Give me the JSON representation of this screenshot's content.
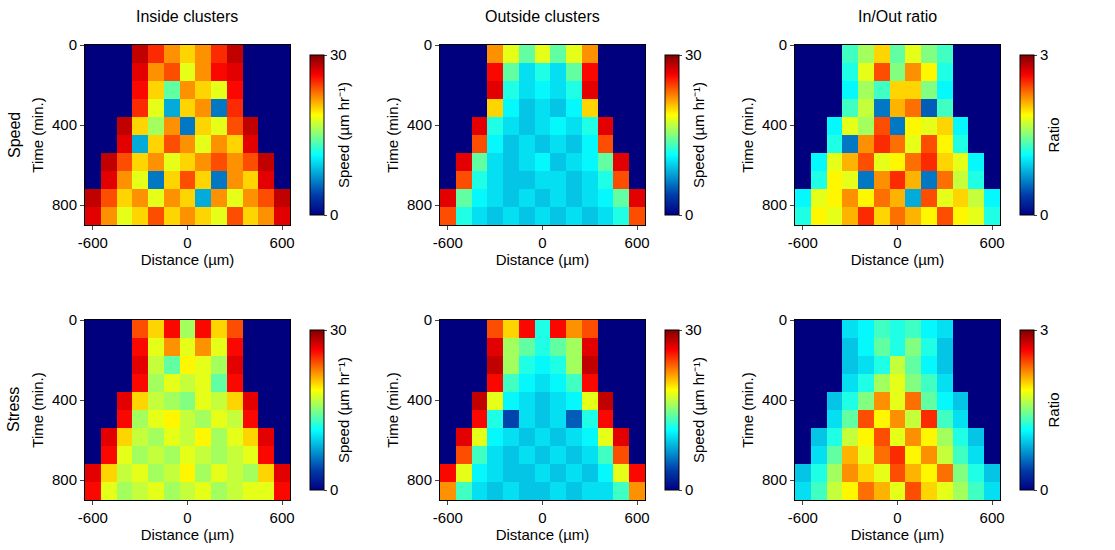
{
  "chart_data": [
    {
      "type": "heatmap",
      "title": "Inside clusters",
      "annotations": [
        "Speed"
      ],
      "xlabel": "Distance (µm)",
      "ylabel": "Time (min.)",
      "color": "Jet",
      "x": [
        -600,
        -500,
        -400,
        -300,
        -200,
        -100,
        0,
        100,
        200,
        300,
        400,
        500,
        600
      ],
      "y": [
        45,
        135,
        225,
        315,
        405,
        495,
        585,
        675,
        765,
        855
      ],
      "xlim": [
        -650,
        650
      ],
      "ylim": [
        900,
        0
      ],
      "xticks": [
        -600,
        0,
        600
      ],
      "yticks": [
        0,
        400,
        800
      ],
      "colorbar": {
        "title": "Speed (µm hr⁻¹)",
        "range": [
          0,
          30
        ],
        "ticks": [
          0,
          30
        ]
      },
      "z": [
        [
          null,
          null,
          null,
          28,
          25,
          22,
          20,
          22,
          25,
          28,
          null,
          null,
          null
        ],
        [
          null,
          null,
          null,
          27,
          22,
          24,
          18,
          22,
          26,
          27,
          null,
          null,
          null
        ],
        [
          null,
          null,
          null,
          26,
          20,
          14,
          22,
          20,
          18,
          26,
          null,
          null,
          null
        ],
        [
          null,
          null,
          null,
          25,
          18,
          8,
          20,
          22,
          6,
          25,
          null,
          null,
          null
        ],
        [
          null,
          null,
          28,
          20,
          16,
          22,
          6,
          20,
          18,
          24,
          28,
          null,
          null
        ],
        [
          null,
          null,
          27,
          8,
          20,
          24,
          22,
          18,
          22,
          20,
          27,
          null,
          null
        ],
        [
          null,
          28,
          24,
          20,
          22,
          18,
          20,
          22,
          24,
          22,
          24,
          28,
          null
        ],
        [
          null,
          27,
          22,
          18,
          6,
          20,
          24,
          20,
          6,
          22,
          20,
          27,
          null
        ],
        [
          28,
          24,
          20,
          22,
          18,
          22,
          20,
          8,
          22,
          18,
          22,
          24,
          28
        ],
        [
          27,
          22,
          18,
          20,
          24,
          20,
          22,
          20,
          18,
          24,
          20,
          22,
          27
        ]
      ]
    },
    {
      "type": "heatmap",
      "title": "Outside clusters",
      "xlabel": "Distance (µm)",
      "ylabel": "Time (min.)",
      "color": "Jet",
      "x": [
        -600,
        -500,
        -400,
        -300,
        -200,
        -100,
        0,
        100,
        200,
        300,
        400,
        500,
        600
      ],
      "y": [
        45,
        135,
        225,
        315,
        405,
        495,
        585,
        675,
        765,
        855
      ],
      "xlim": [
        -650,
        650
      ],
      "ylim": [
        900,
        0
      ],
      "xticks": [
        -600,
        0,
        600
      ],
      "yticks": [
        0,
        400,
        800
      ],
      "colorbar": {
        "title": "Speed (µm hr⁻¹)",
        "range": [
          0,
          30
        ],
        "ticks": [
          0,
          30
        ]
      },
      "z": [
        [
          null,
          null,
          null,
          22,
          18,
          14,
          18,
          14,
          18,
          22,
          null,
          null,
          null
        ],
        [
          null,
          null,
          null,
          26,
          14,
          10,
          12,
          10,
          14,
          26,
          null,
          null,
          null
        ],
        [
          null,
          null,
          null,
          27,
          12,
          10,
          11,
          10,
          12,
          27,
          null,
          null,
          null
        ],
        [
          null,
          null,
          null,
          20,
          11,
          9,
          10,
          9,
          11,
          20,
          null,
          null,
          null
        ],
        [
          null,
          null,
          27,
          12,
          10,
          9,
          10,
          11,
          10,
          12,
          27,
          null,
          null
        ],
        [
          null,
          null,
          24,
          11,
          9,
          10,
          9,
          10,
          9,
          11,
          24,
          null,
          null
        ],
        [
          null,
          27,
          14,
          10,
          9,
          10,
          11,
          9,
          10,
          11,
          14,
          27,
          null
        ],
        [
          null,
          24,
          12,
          10,
          9,
          9,
          10,
          10,
          9,
          10,
          12,
          24,
          null
        ],
        [
          27,
          14,
          11,
          10,
          9,
          10,
          9,
          10,
          9,
          10,
          11,
          14,
          27
        ],
        [
          24,
          12,
          10,
          9,
          10,
          9,
          10,
          9,
          10,
          9,
          10,
          12,
          24
        ]
      ]
    },
    {
      "type": "heatmap",
      "title": "In/Out ratio",
      "xlabel": "Distance (µm)",
      "ylabel": "Time (min.)",
      "color": "Jet",
      "x": [
        -600,
        -500,
        -400,
        -300,
        -200,
        -100,
        0,
        100,
        200,
        300,
        400,
        500,
        600
      ],
      "y": [
        45,
        135,
        225,
        315,
        405,
        495,
        585,
        675,
        765,
        855
      ],
      "xlim": [
        -650,
        650
      ],
      "ylim": [
        900,
        0
      ],
      "xticks": [
        -600,
        0,
        600
      ],
      "yticks": [
        0,
        400,
        800
      ],
      "colorbar": {
        "title": "Ratio",
        "range": [
          0,
          3
        ],
        "ticks": [
          0,
          3
        ]
      },
      "z": [
        [
          null,
          null,
          null,
          1.3,
          1.6,
          2.0,
          1.4,
          1.8,
          1.5,
          1.3,
          null,
          null,
          null
        ],
        [
          null,
          null,
          null,
          1.2,
          1.8,
          2.4,
          1.5,
          2.2,
          1.9,
          1.2,
          null,
          null,
          null
        ],
        [
          null,
          null,
          null,
          1.1,
          1.6,
          1.3,
          2.0,
          2.0,
          1.5,
          1.1,
          null,
          null,
          null
        ],
        [
          null,
          null,
          null,
          1.3,
          1.7,
          0.6,
          2.1,
          2.3,
          0.5,
          1.3,
          null,
          null,
          null
        ],
        [
          null,
          null,
          1.1,
          1.8,
          1.6,
          2.4,
          0.6,
          1.9,
          1.8,
          2.0,
          1.1,
          null,
          null
        ],
        [
          null,
          null,
          1.2,
          0.6,
          2.2,
          2.5,
          2.3,
          1.8,
          2.4,
          1.9,
          1.2,
          null,
          null
        ],
        [
          null,
          1.1,
          1.8,
          2.1,
          2.4,
          1.8,
          1.9,
          2.3,
          2.5,
          2.0,
          1.8,
          1.1,
          null
        ],
        [
          null,
          1.2,
          1.9,
          1.8,
          0.6,
          2.2,
          2.5,
          2.1,
          0.6,
          2.3,
          1.7,
          1.2,
          null
        ],
        [
          1.1,
          1.8,
          1.9,
          2.2,
          1.9,
          2.3,
          2.1,
          0.8,
          2.4,
          1.8,
          2.0,
          1.7,
          1.1
        ],
        [
          1.2,
          1.9,
          1.8,
          2.1,
          2.5,
          2.0,
          2.3,
          2.1,
          1.9,
          2.4,
          1.9,
          1.8,
          1.2
        ]
      ]
    },
    {
      "type": "heatmap",
      "annotations": [
        "Stress"
      ],
      "xlabel": "Distance (µm)",
      "ylabel": "Time (min.)",
      "color": "Jet",
      "x": [
        -600,
        -500,
        -400,
        -300,
        -200,
        -100,
        0,
        100,
        200,
        300,
        400,
        500,
        600
      ],
      "y": [
        45,
        135,
        225,
        315,
        405,
        495,
        585,
        675,
        765,
        855
      ],
      "xlim": [
        -650,
        650
      ],
      "ylim": [
        900,
        0
      ],
      "xticks": [
        -600,
        0,
        600
      ],
      "yticks": [
        0,
        400,
        800
      ],
      "colorbar": {
        "title": "Speed (µm hr⁻¹)",
        "range": [
          0,
          30
        ],
        "ticks": [
          0,
          30
        ]
      },
      "z": [
        [
          null,
          null,
          null,
          24,
          20,
          26,
          16,
          26,
          20,
          24,
          null,
          null,
          null
        ],
        [
          null,
          null,
          null,
          26,
          18,
          22,
          18,
          22,
          18,
          26,
          null,
          null,
          null
        ],
        [
          null,
          null,
          null,
          27,
          17,
          14,
          19,
          18,
          16,
          27,
          null,
          null,
          null
        ],
        [
          null,
          null,
          null,
          26,
          16,
          18,
          17,
          18,
          14,
          26,
          null,
          null,
          null
        ],
        [
          null,
          null,
          27,
          20,
          17,
          16,
          15,
          18,
          17,
          20,
          27,
          null,
          null
        ],
        [
          null,
          null,
          26,
          16,
          18,
          19,
          17,
          16,
          18,
          17,
          26,
          null,
          null
        ],
        [
          null,
          27,
          20,
          17,
          16,
          18,
          17,
          19,
          16,
          18,
          20,
          27,
          null
        ],
        [
          null,
          26,
          18,
          16,
          17,
          16,
          18,
          17,
          16,
          17,
          18,
          26,
          null
        ],
        [
          27,
          20,
          17,
          18,
          16,
          17,
          19,
          16,
          18,
          17,
          16,
          20,
          27
        ],
        [
          26,
          18,
          16,
          17,
          18,
          16,
          17,
          18,
          16,
          17,
          18,
          18,
          26
        ]
      ]
    },
    {
      "type": "heatmap",
      "xlabel": "Distance (µm)",
      "ylabel": "Time (min.)",
      "color": "Jet",
      "x": [
        -600,
        -500,
        -400,
        -300,
        -200,
        -100,
        0,
        100,
        200,
        300,
        400,
        500,
        600
      ],
      "y": [
        45,
        135,
        225,
        315,
        405,
        495,
        585,
        675,
        765,
        855
      ],
      "xlim": [
        -650,
        650
      ],
      "ylim": [
        900,
        0
      ],
      "xticks": [
        -600,
        0,
        600
      ],
      "yticks": [
        0,
        400,
        800
      ],
      "colorbar": {
        "title": "Speed (µm hr⁻¹)",
        "range": [
          0,
          30
        ],
        "ticks": [
          0,
          30
        ]
      },
      "z": [
        [
          null,
          null,
          null,
          24,
          20,
          26,
          12,
          26,
          22,
          24,
          null,
          null,
          null
        ],
        [
          null,
          null,
          null,
          27,
          16,
          14,
          12,
          14,
          16,
          27,
          null,
          null,
          null
        ],
        [
          null,
          null,
          null,
          28,
          16,
          12,
          11,
          12,
          16,
          28,
          null,
          null,
          null
        ],
        [
          null,
          null,
          null,
          26,
          13,
          11,
          10,
          11,
          13,
          26,
          null,
          null,
          null
        ],
        [
          null,
          null,
          28,
          18,
          11,
          10,
          9,
          10,
          11,
          18,
          28,
          null,
          null
        ],
        [
          null,
          null,
          26,
          12,
          4,
          10,
          9,
          10,
          5,
          12,
          26,
          null,
          null
        ],
        [
          null,
          27,
          18,
          11,
          10,
          9,
          10,
          9,
          10,
          11,
          18,
          27,
          null
        ],
        [
          null,
          24,
          13,
          10,
          9,
          10,
          9,
          10,
          9,
          10,
          13,
          24,
          null
        ],
        [
          26,
          18,
          11,
          10,
          9,
          9,
          10,
          9,
          10,
          9,
          11,
          18,
          26
        ],
        [
          22,
          13,
          10,
          9,
          10,
          9,
          9,
          10,
          9,
          10,
          10,
          13,
          22
        ]
      ]
    },
    {
      "type": "heatmap",
      "xlabel": "Distance (µm)",
      "ylabel": "Time (min.)",
      "color": "Jet",
      "x": [
        -600,
        -500,
        -400,
        -300,
        -200,
        -100,
        0,
        100,
        200,
        300,
        400,
        500,
        600
      ],
      "y": [
        45,
        135,
        225,
        315,
        405,
        495,
        585,
        675,
        765,
        855
      ],
      "xlim": [
        -650,
        650
      ],
      "ylim": [
        900,
        0
      ],
      "xticks": [
        -600,
        0,
        600
      ],
      "yticks": [
        0,
        400,
        800
      ],
      "colorbar": {
        "title": "Ratio",
        "range": [
          0,
          3
        ],
        "ticks": [
          0,
          3
        ]
      },
      "z": [
        [
          null,
          null,
          null,
          1.0,
          1.1,
          1.3,
          1.2,
          1.3,
          1.1,
          1.0,
          null,
          null,
          null
        ],
        [
          null,
          null,
          null,
          0.9,
          1.1,
          1.4,
          1.2,
          1.5,
          1.2,
          0.9,
          null,
          null,
          null
        ],
        [
          null,
          null,
          null,
          0.9,
          1.0,
          1.2,
          1.7,
          1.4,
          1.1,
          0.9,
          null,
          null,
          null
        ],
        [
          null,
          null,
          null,
          1.0,
          1.2,
          1.6,
          1.8,
          1.5,
          1.3,
          1.0,
          null,
          null,
          null
        ],
        [
          null,
          null,
          0.9,
          1.2,
          1.5,
          2.2,
          1.8,
          2.3,
          1.4,
          1.1,
          0.9,
          null,
          null
        ],
        [
          null,
          null,
          1.0,
          1.4,
          2.4,
          1.9,
          2.2,
          1.7,
          2.5,
          1.3,
          1.0,
          null,
          null
        ],
        [
          null,
          0.9,
          1.2,
          1.7,
          1.9,
          2.4,
          1.8,
          2.2,
          1.9,
          1.6,
          1.2,
          0.9,
          null
        ],
        [
          null,
          1.0,
          1.4,
          2.1,
          1.8,
          2.3,
          2.5,
          1.9,
          2.2,
          1.7,
          1.3,
          1.0,
          null
        ],
        [
          0.9,
          1.2,
          1.6,
          2.2,
          2.0,
          1.8,
          2.4,
          2.1,
          1.9,
          2.3,
          1.5,
          1.2,
          0.9
        ],
        [
          1.0,
          1.3,
          1.7,
          1.9,
          2.3,
          2.1,
          1.8,
          2.4,
          2.0,
          1.8,
          1.6,
          1.3,
          1.0
        ]
      ]
    }
  ]
}
